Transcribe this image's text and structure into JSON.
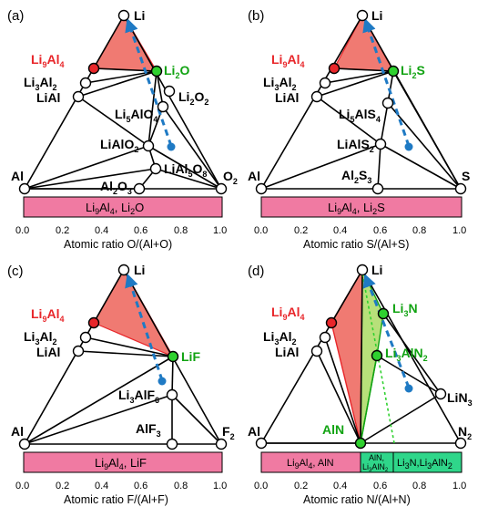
{
  "panels": [
    {
      "id": "a",
      "panel_label": "(a)",
      "apex_label": "Li",
      "left_label": "Al",
      "right_label_main": "O",
      "right_label_sub": "2",
      "phases": {
        "li9al4": {
          "main": "Li",
          "s1": "9",
          "m2": "Al",
          "s2": "4"
        },
        "li3al2": {
          "main": "Li",
          "s1": "3",
          "m2": "Al",
          "s2": "2"
        },
        "lial": "LiAl",
        "product": {
          "main": "Li",
          "s1": "2",
          "m2": "O",
          "s2": ""
        },
        "c1": {
          "main": "Li",
          "s1": "2",
          "m2": "O",
          "s2": "2"
        },
        "c2": {
          "main": "Li",
          "s1": "5",
          "m2": "AlO",
          "s2": "4"
        },
        "c3": {
          "main": "LiAlO",
          "s1": "2",
          "m2": "",
          "s2": ""
        },
        "c4": {
          "main": "LiAl",
          "s1": "5",
          "m2": "O",
          "s2": "8"
        },
        "c5": {
          "main": "Al",
          "s1": "2",
          "m2": "O",
          "s2": "3"
        }
      },
      "bar": {
        "text_main": "Li",
        "s1": "9",
        "m2": "Al",
        "s2": "4",
        "tail": ", Li",
        "s3": "2",
        "m3": "O"
      },
      "axis_title": "Atomic ratio O/(Al+O)"
    },
    {
      "id": "b",
      "panel_label": "(b)",
      "apex_label": "Li",
      "left_label": "Al",
      "right_label_main": "S",
      "right_label_sub": "",
      "phases": {
        "li9al4": {
          "main": "Li",
          "s1": "9",
          "m2": "Al",
          "s2": "4"
        },
        "li3al2": {
          "main": "Li",
          "s1": "3",
          "m2": "Al",
          "s2": "2"
        },
        "lial": "LiAl",
        "product": {
          "main": "Li",
          "s1": "2",
          "m2": "S",
          "s2": ""
        },
        "c1": {
          "main": "Li",
          "s1": "5",
          "m2": "AlS",
          "s2": "4"
        },
        "c2": {
          "main": "LiAlS",
          "s1": "2",
          "m2": "",
          "s2": ""
        },
        "c3": {
          "main": "Al",
          "s1": "2",
          "m2": "S",
          "s2": "3"
        }
      },
      "bar": {
        "text_main": "Li",
        "s1": "9",
        "m2": "Al",
        "s2": "4",
        "tail": ", Li",
        "s3": "2",
        "m3": "S"
      },
      "axis_title": "Atomic ratio S/(Al+S)"
    },
    {
      "id": "c",
      "panel_label": "(c)",
      "apex_label": "Li",
      "left_label": "Al",
      "right_label_main": "F",
      "right_label_sub": "2",
      "phases": {
        "li9al4": {
          "main": "Li",
          "s1": "9",
          "m2": "Al",
          "s2": "4"
        },
        "li3al2": {
          "main": "Li",
          "s1": "3",
          "m2": "Al",
          "s2": "2"
        },
        "lial": "LiAl",
        "product": {
          "main": "LiF",
          "s1": "",
          "m2": "",
          "s2": ""
        },
        "c1": {
          "main": "Li",
          "s1": "3",
          "m2": "AlF",
          "s2": "6"
        },
        "c2": {
          "main": "AlF",
          "s1": "3",
          "m2": "",
          "s2": ""
        }
      },
      "bar": {
        "text_main": "Li",
        "s1": "9",
        "m2": "Al",
        "s2": "4",
        "tail": ", LiF",
        "s3": "",
        "m3": ""
      },
      "axis_title": "Atomic ratio F/(Al+F)"
    },
    {
      "id": "d",
      "panel_label": "(d)",
      "apex_label": "Li",
      "left_label": "Al",
      "right_label_main": "N",
      "right_label_sub": "2",
      "phases": {
        "li9al4": {
          "main": "Li",
          "s1": "9",
          "m2": "Al",
          "s2": "4"
        },
        "li3al2": {
          "main": "Li",
          "s1": "3",
          "m2": "Al",
          "s2": "2"
        },
        "lial": "LiAl",
        "li3n": {
          "main": "Li",
          "s1": "3",
          "m2": "N",
          "s2": ""
        },
        "li3aln2": {
          "main": "Li",
          "s1": "3",
          "m2": "AlN",
          "s2": "2"
        },
        "aln": "AlN",
        "lin3": {
          "main": "LiN",
          "s1": "3",
          "m2": "",
          "s2": ""
        }
      },
      "bar_segments": [
        {
          "text_main": "Li",
          "s1": "9",
          "m2": "Al",
          "s2": "4",
          "tail": ", AlN"
        },
        {
          "line1": "AlN,",
          "line2_main": "Li",
          "line2_s1": "3",
          "line2_m2": "AlN",
          "line2_s2": "2"
        },
        {
          "text_main": "Li",
          "s1": "3",
          "m2": "N,Li",
          "s2": "3",
          "m3": "AlN",
          "s3": "2"
        }
      ],
      "axis_title": "Atomic ratio N/(Al+N)"
    }
  ],
  "tick_labels": [
    "0.0",
    "0.2",
    "0.4",
    "0.6",
    "0.8",
    "1.0"
  ],
  "colors": {
    "red_fill": "#f07a72",
    "red_edge": "#e8262a",
    "green_fill": "#b7e07a",
    "green_node": "#2fd12f",
    "blue_arrow": "#1f7ac4",
    "pink_bar": "#f07aa2",
    "green_bar": "#2fd68a"
  }
}
